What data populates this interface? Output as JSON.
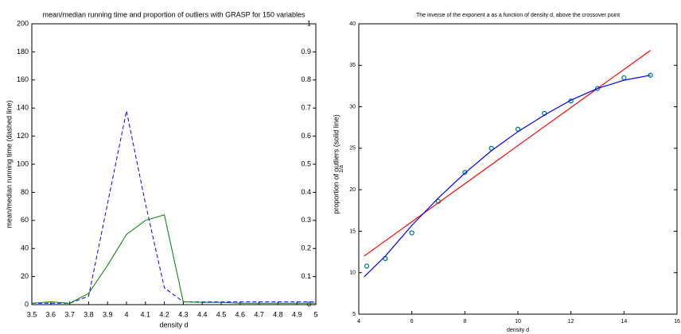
{
  "chart_data": [
    {
      "type": "line",
      "title": "mean/median running time and proportion of outliers with GRASP for 150 variables",
      "xlabel": "density d",
      "ylabel": "mean/median running time (dashed line)",
      "y2label": "proportion of outliers (solid line)",
      "x": [
        3.5,
        3.6,
        3.7,
        3.8,
        3.9,
        4.0,
        4.1,
        4.2,
        4.3,
        4.4,
        4.5,
        4.6,
        4.7,
        4.8,
        4.9,
        5
      ],
      "xlim": [
        3.5,
        5
      ],
      "xticks": [
        3.5,
        3.6,
        3.7,
        3.8,
        3.9,
        4,
        4.1,
        4.2,
        4.3,
        4.4,
        4.5,
        4.6,
        4.7,
        4.8,
        4.9,
        5
      ],
      "ylim": [
        0,
        200
      ],
      "yticks": [
        0,
        20,
        40,
        60,
        80,
        100,
        120,
        140,
        160,
        180,
        200
      ],
      "y2lim": [
        0,
        1
      ],
      "y2ticks": [
        0,
        0.1,
        0.2,
        0.3,
        0.4,
        0.5,
        0.6,
        0.7,
        0.8,
        0.9,
        1
      ],
      "series": [
        {
          "color": "#0000ff",
          "dashed": true,
          "axis": "y",
          "values": [
            1,
            1,
            1,
            6,
            72,
            138,
            72,
            12,
            2,
            2,
            2,
            2,
            2,
            2,
            2,
            2
          ]
        },
        {
          "color": "#008000",
          "dashed": false,
          "axis": "y2",
          "values": [
            0.005,
            0.01,
            0.005,
            0.04,
            0.14,
            0.25,
            0.3,
            0.32,
            0.01,
            0.008,
            0.008,
            0.005,
            0.005,
            0.005,
            0.005,
            0.005
          ]
        }
      ]
    },
    {
      "type": "scatter",
      "title": "The inverse of the exponent a as a function of density d, above the crossover point",
      "xlabel": "density d",
      "ylabel": "1/a",
      "xlim": [
        4,
        16
      ],
      "xticks": [
        4,
        6,
        8,
        10,
        12,
        14,
        16
      ],
      "ylim": [
        5,
        40
      ],
      "yticks": [
        5,
        10,
        15,
        20,
        25,
        30,
        35,
        40
      ],
      "series": [
        {
          "color": "#008080",
          "style": "markers",
          "x": [
            4.3,
            5,
            6,
            7,
            8,
            9,
            10,
            11,
            12,
            13,
            14,
            15
          ],
          "values": [
            10.8,
            11.7,
            14.8,
            18.6,
            22.1,
            25,
            27.3,
            29.2,
            30.7,
            32.2,
            33.5,
            33.8
          ]
        },
        {
          "color": "#ff0000",
          "style": "line",
          "x": [
            4.2,
            15
          ],
          "values": [
            12,
            36.8
          ]
        },
        {
          "color": "#0000ff",
          "style": "line",
          "x": [
            4.2,
            5,
            6,
            7,
            8,
            9,
            10,
            11,
            12,
            13,
            14,
            15
          ],
          "values": [
            9.5,
            12,
            15.7,
            19,
            22,
            24.7,
            27,
            29,
            30.8,
            32.2,
            33.2,
            33.8
          ]
        }
      ]
    }
  ]
}
